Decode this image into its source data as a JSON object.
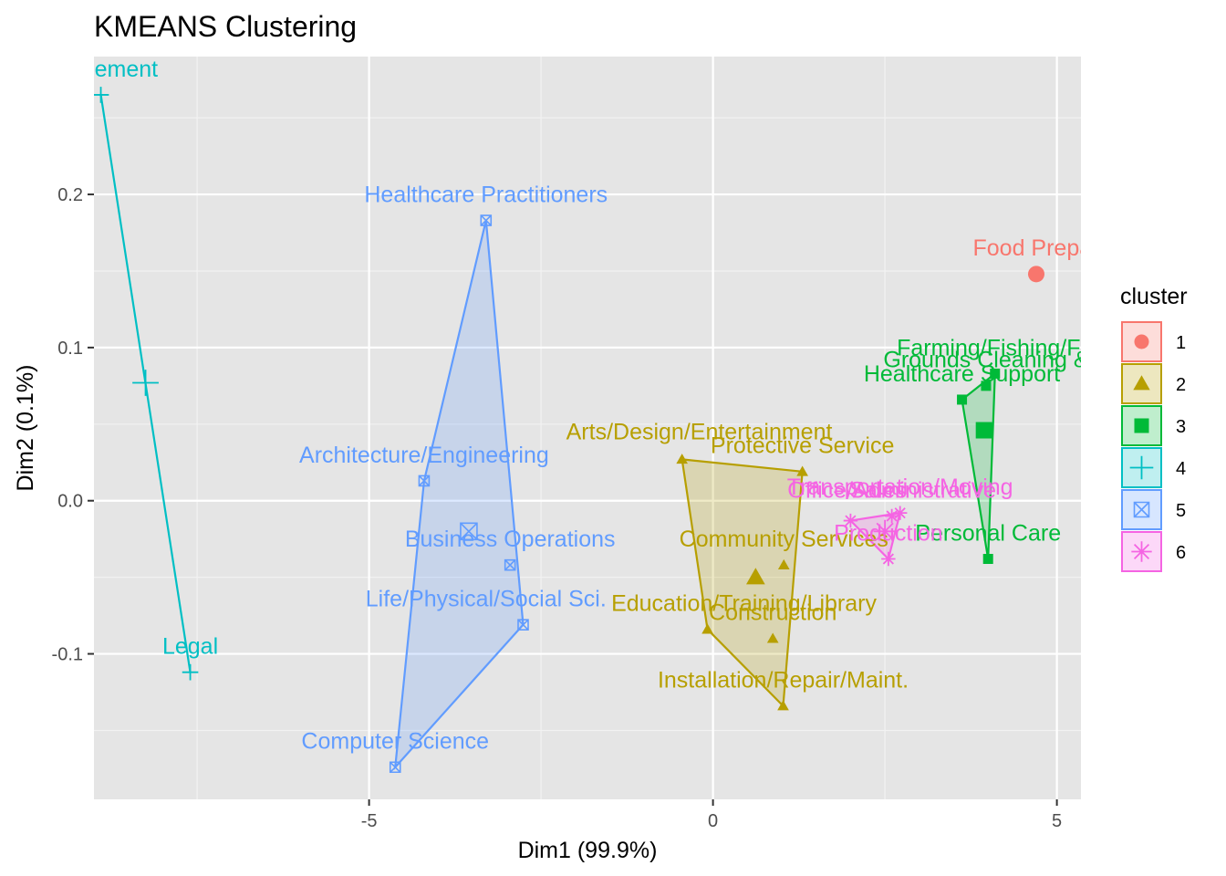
{
  "chart_data": {
    "type": "scatter",
    "title": "KMEANS Clustering",
    "xlabel": "Dim1 (99.9%)",
    "ylabel": "Dim2 (0.1%)",
    "xlim": [
      -9.0,
      5.35
    ],
    "ylim": [
      -0.195,
      0.29
    ],
    "x_ticks": [
      -5,
      0,
      5
    ],
    "x_tick_labels": [
      "-5",
      "0",
      "5"
    ],
    "y_ticks": [
      -0.1,
      0.0,
      0.1,
      0.2
    ],
    "y_tick_labels": [
      "-0.1",
      "0.0",
      "0.1",
      "0.2"
    ],
    "grid": true,
    "legend_position": "right",
    "legend_title": "cluster",
    "clusters": [
      {
        "name": "1",
        "color": "#F8766D",
        "shape": "circle",
        "centroid": [
          4.7,
          0.148
        ],
        "points": [
          {
            "label": "Food Preparation",
            "x": 4.7,
            "y": 0.148
          }
        ]
      },
      {
        "name": "2",
        "color": "#B79F00",
        "shape": "triangle",
        "centroid": [
          0.62,
          -0.05
        ],
        "points": [
          {
            "label": "Arts/Design/Entertainment",
            "x": -0.45,
            "y": 0.027
          },
          {
            "label": "Protective Service",
            "x": 1.3,
            "y": 0.019
          },
          {
            "label": "Community Services",
            "x": 1.03,
            "y": -0.042
          },
          {
            "label": "Education/Training/Library",
            "x": -0.08,
            "y": -0.084
          },
          {
            "label": "Construction",
            "x": 0.87,
            "y": -0.09
          },
          {
            "label": "Installation/Repair/Maint.",
            "x": 1.02,
            "y": -0.134
          }
        ]
      },
      {
        "name": "3",
        "color": "#00BA38",
        "shape": "square",
        "centroid": [
          3.94,
          0.046
        ],
        "points": [
          {
            "label": "Farming/Fishing/Forestry",
            "x": 4.1,
            "y": 0.083
          },
          {
            "label": "Grounds Cleaning & Maintenance",
            "x": 3.97,
            "y": 0.075
          },
          {
            "label": "Healthcare Support",
            "x": 3.62,
            "y": 0.066
          },
          {
            "label": "Personal Care",
            "x": 4.0,
            "y": -0.038
          }
        ]
      },
      {
        "name": "4",
        "color": "#00BFC4",
        "shape": "plus",
        "centroid": [
          -8.25,
          0.077
        ],
        "points": [
          {
            "label": "Management",
            "x": -8.9,
            "y": 0.265
          },
          {
            "label": "Legal",
            "x": -7.6,
            "y": -0.112
          }
        ]
      },
      {
        "name": "5",
        "color": "#619CFF",
        "shape": "square-x",
        "centroid": [
          -3.55,
          -0.02
        ],
        "points": [
          {
            "label": "Healthcare Practitioners",
            "x": -3.3,
            "y": 0.183
          },
          {
            "label": "Architecture/Engineering",
            "x": -4.2,
            "y": 0.013
          },
          {
            "label": "Business Operations",
            "x": -2.95,
            "y": -0.042
          },
          {
            "label": "Life/Physical/Social Sci.",
            "x": -2.76,
            "y": -0.081
          },
          {
            "label": "Computer Science",
            "x": -4.62,
            "y": -0.174
          }
        ]
      },
      {
        "name": "6",
        "color": "#F564E3",
        "shape": "asterisk",
        "centroid": [
          2.5,
          -0.02
        ],
        "points": [
          {
            "label": "Transportation/Moving",
            "x": 2.72,
            "y": -0.008
          },
          {
            "label": "Office/Administrative",
            "x": 2.6,
            "y": -0.01
          },
          {
            "label": "Sales",
            "x": 2.0,
            "y": -0.013
          },
          {
            "label": "Production",
            "x": 2.55,
            "y": -0.038
          }
        ]
      }
    ],
    "labels": [
      {
        "text": "Food Prepar",
        "x": 4.7,
        "y": 0.16,
        "cluster": "1"
      },
      {
        "text": "Arts/Design/Entertainment",
        "x": -0.2,
        "y": 0.04,
        "cluster": "2"
      },
      {
        "text": "Protective Service",
        "x": 1.3,
        "y": 0.031,
        "cluster": "2"
      },
      {
        "text": "Community Services",
        "x": 1.03,
        "y": -0.03,
        "cluster": "2"
      },
      {
        "text": "Education/Training/Library",
        "x": 0.45,
        "y": -0.072,
        "cluster": "2"
      },
      {
        "text": "Construction",
        "x": 0.87,
        "y": -0.078,
        "cluster": "2"
      },
      {
        "text": "Installation/Repair/Maint.",
        "x": 1.02,
        "y": -0.122,
        "cluster": "2"
      },
      {
        "text": "Farming/Fishing/Fo",
        "x": 4.1,
        "y": 0.095,
        "cluster": "3"
      },
      {
        "text": "Grounds Cleaning &",
        "x": 3.97,
        "y": 0.087,
        "cluster": "3"
      },
      {
        "text": "Healthcare Support",
        "x": 3.62,
        "y": 0.078,
        "cluster": "3"
      },
      {
        "text": "Personal Care",
        "x": 4.0,
        "y": -0.026,
        "cluster": "3"
      },
      {
        "text": "anagement",
        "x": -8.9,
        "y": 0.277,
        "cluster": "4"
      },
      {
        "text": "Legal",
        "x": -7.6,
        "y": -0.1,
        "cluster": "4"
      },
      {
        "text": "Healthcare Practitioners",
        "x": -3.3,
        "y": 0.195,
        "cluster": "5"
      },
      {
        "text": "Architecture/Engineering",
        "x": -4.2,
        "y": 0.025,
        "cluster": "5"
      },
      {
        "text": "Business Operations",
        "x": -2.95,
        "y": -0.03,
        "cluster": "5"
      },
      {
        "text": "Life/Physical/Social Sci.",
        "x": -3.3,
        "y": -0.069,
        "cluster": "5"
      },
      {
        "text": "Computer Science",
        "x": -4.62,
        "y": -0.162,
        "cluster": "5"
      },
      {
        "text": "Transportation/Moving",
        "x": 2.72,
        "y": 0.004,
        "cluster": "6"
      },
      {
        "text": "Office/Administrative",
        "x": 2.6,
        "y": 0.002,
        "cluster": "6"
      },
      {
        "text": "Sales",
        "x": 2.4,
        "y": 0.002,
        "cluster": "6"
      },
      {
        "text": "Production",
        "x": 2.55,
        "y": -0.026,
        "cluster": "6"
      }
    ]
  }
}
